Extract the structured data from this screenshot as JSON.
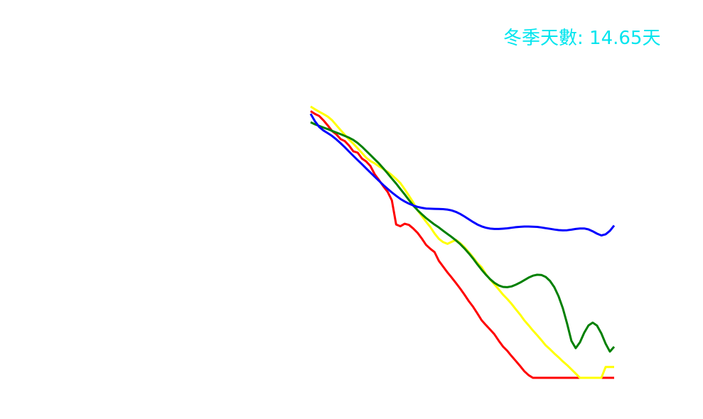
{
  "chart_data": {
    "type": "line",
    "title": "冬季天數: 14.65天",
    "title_color": "#00e5ee",
    "xlabel": "",
    "ylabel": "",
    "grid": false,
    "axes_visible": false,
    "x": [
      0,
      1,
      2,
      3,
      4,
      5,
      6,
      7,
      8,
      9,
      10,
      11,
      12,
      13,
      14,
      15,
      16,
      17,
      18,
      19,
      20,
      21,
      22,
      23,
      24,
      25,
      26,
      27,
      28,
      29,
      30,
      31,
      32,
      33,
      34,
      35,
      36,
      37,
      38,
      39,
      40,
      41,
      42,
      43,
      44,
      45,
      46,
      47,
      48,
      49,
      50,
      51,
      52,
      53,
      54,
      55,
      56,
      57,
      58,
      59,
      60,
      61,
      62,
      63,
      64,
      65,
      66,
      67,
      68,
      69,
      70,
      71
    ],
    "ylim": [
      0,
      30
    ],
    "series": [
      {
        "color": "#ff0000",
        "values": [
          24.16,
          23.96,
          23.81,
          23.49,
          23.12,
          22.71,
          22.47,
          22.12,
          21.97,
          21.64,
          21.22,
          21.12,
          20.69,
          20.48,
          20.14,
          19.54,
          19.12,
          18.67,
          18.26,
          17.63,
          15.87,
          15.74,
          15.92,
          15.84,
          15.58,
          15.26,
          14.84,
          14.38,
          14.09,
          13.84,
          13.21,
          12.79,
          12.36,
          11.98,
          11.58,
          11.17,
          10.73,
          10.26,
          9.85,
          9.37,
          8.86,
          8.51,
          8.18,
          7.83,
          7.37,
          6.94,
          6.63,
          6.24,
          5.88,
          5.51,
          5.13,
          4.84,
          4.65,
          4.65,
          4.65,
          4.65,
          4.65,
          4.65,
          4.65,
          4.65,
          4.65,
          4.65,
          4.65,
          4.65,
          4.65,
          4.65,
          4.65,
          4.65,
          4.65,
          4.65,
          4.65,
          4.65
        ]
      },
      {
        "color": "#ffff00",
        "values": [
          24.5,
          24.3,
          24.12,
          23.95,
          23.76,
          23.5,
          23.14,
          22.78,
          22.43,
          22.08,
          21.78,
          21.44,
          21.1,
          20.76,
          20.51,
          20.34,
          20.12,
          19.93,
          19.72,
          19.48,
          19.2,
          18.9,
          18.45,
          17.98,
          17.48,
          16.91,
          16.49,
          16.07,
          15.68,
          15.21,
          14.82,
          14.58,
          14.45,
          14.6,
          14.74,
          14.5,
          14.2,
          13.85,
          13.47,
          13.06,
          12.74,
          12.23,
          11.84,
          11.49,
          11.12,
          10.74,
          10.42,
          10.06,
          9.66,
          9.28,
          8.85,
          8.49,
          8.11,
          7.77,
          7.4,
          7.02,
          6.74,
          6.43,
          6.15,
          5.85,
          5.58,
          5.27,
          4.96,
          4.65,
          4.65,
          4.65,
          4.65,
          4.65,
          4.65,
          5.44,
          5.44,
          5.44
        ]
      },
      {
        "color": "#008000",
        "values": [
          23.35,
          23.2,
          23.08,
          22.96,
          22.85,
          22.72,
          22.6,
          22.48,
          22.35,
          22.22,
          22.05,
          21.83,
          21.56,
          21.26,
          20.95,
          20.64,
          20.33,
          19.98,
          19.61,
          19.23,
          18.86,
          18.46,
          18.07,
          17.66,
          17.26,
          16.92,
          16.62,
          16.34,
          16.1,
          15.86,
          15.65,
          15.41,
          15.18,
          14.95,
          14.7,
          14.43,
          14.11,
          13.76,
          13.38,
          12.96,
          12.56,
          12.19,
          11.86,
          11.6,
          11.41,
          11.3,
          11.28,
          11.34,
          11.46,
          11.62,
          11.8,
          11.98,
          12.12,
          12.19,
          12.17,
          12.03,
          11.74,
          11.28,
          10.62,
          9.74,
          8.62,
          7.35,
          6.82,
          7.25,
          7.95,
          8.48,
          8.69,
          8.47,
          7.9,
          7.15,
          6.57,
          6.92
        ]
      },
      {
        "color": "#0000ff",
        "values": [
          23.97,
          23.43,
          23.01,
          22.75,
          22.55,
          22.35,
          22.1,
          21.82,
          21.52,
          21.2,
          20.89,
          20.58,
          20.28,
          19.97,
          19.66,
          19.36,
          19.06,
          18.76,
          18.48,
          18.21,
          17.97,
          17.74,
          17.55,
          17.39,
          17.26,
          17.16,
          17.09,
          17.04,
          17.02,
          17.01,
          17.0,
          16.99,
          16.96,
          16.9,
          16.79,
          16.64,
          16.45,
          16.25,
          16.05,
          15.87,
          15.73,
          15.63,
          15.57,
          15.54,
          15.54,
          15.56,
          15.59,
          15.63,
          15.67,
          15.7,
          15.72,
          15.72,
          15.71,
          15.69,
          15.65,
          15.6,
          15.55,
          15.5,
          15.46,
          15.44,
          15.45,
          15.49,
          15.54,
          15.58,
          15.58,
          15.51,
          15.37,
          15.2,
          15.07,
          15.15,
          15.4,
          15.79
        ]
      }
    ]
  }
}
